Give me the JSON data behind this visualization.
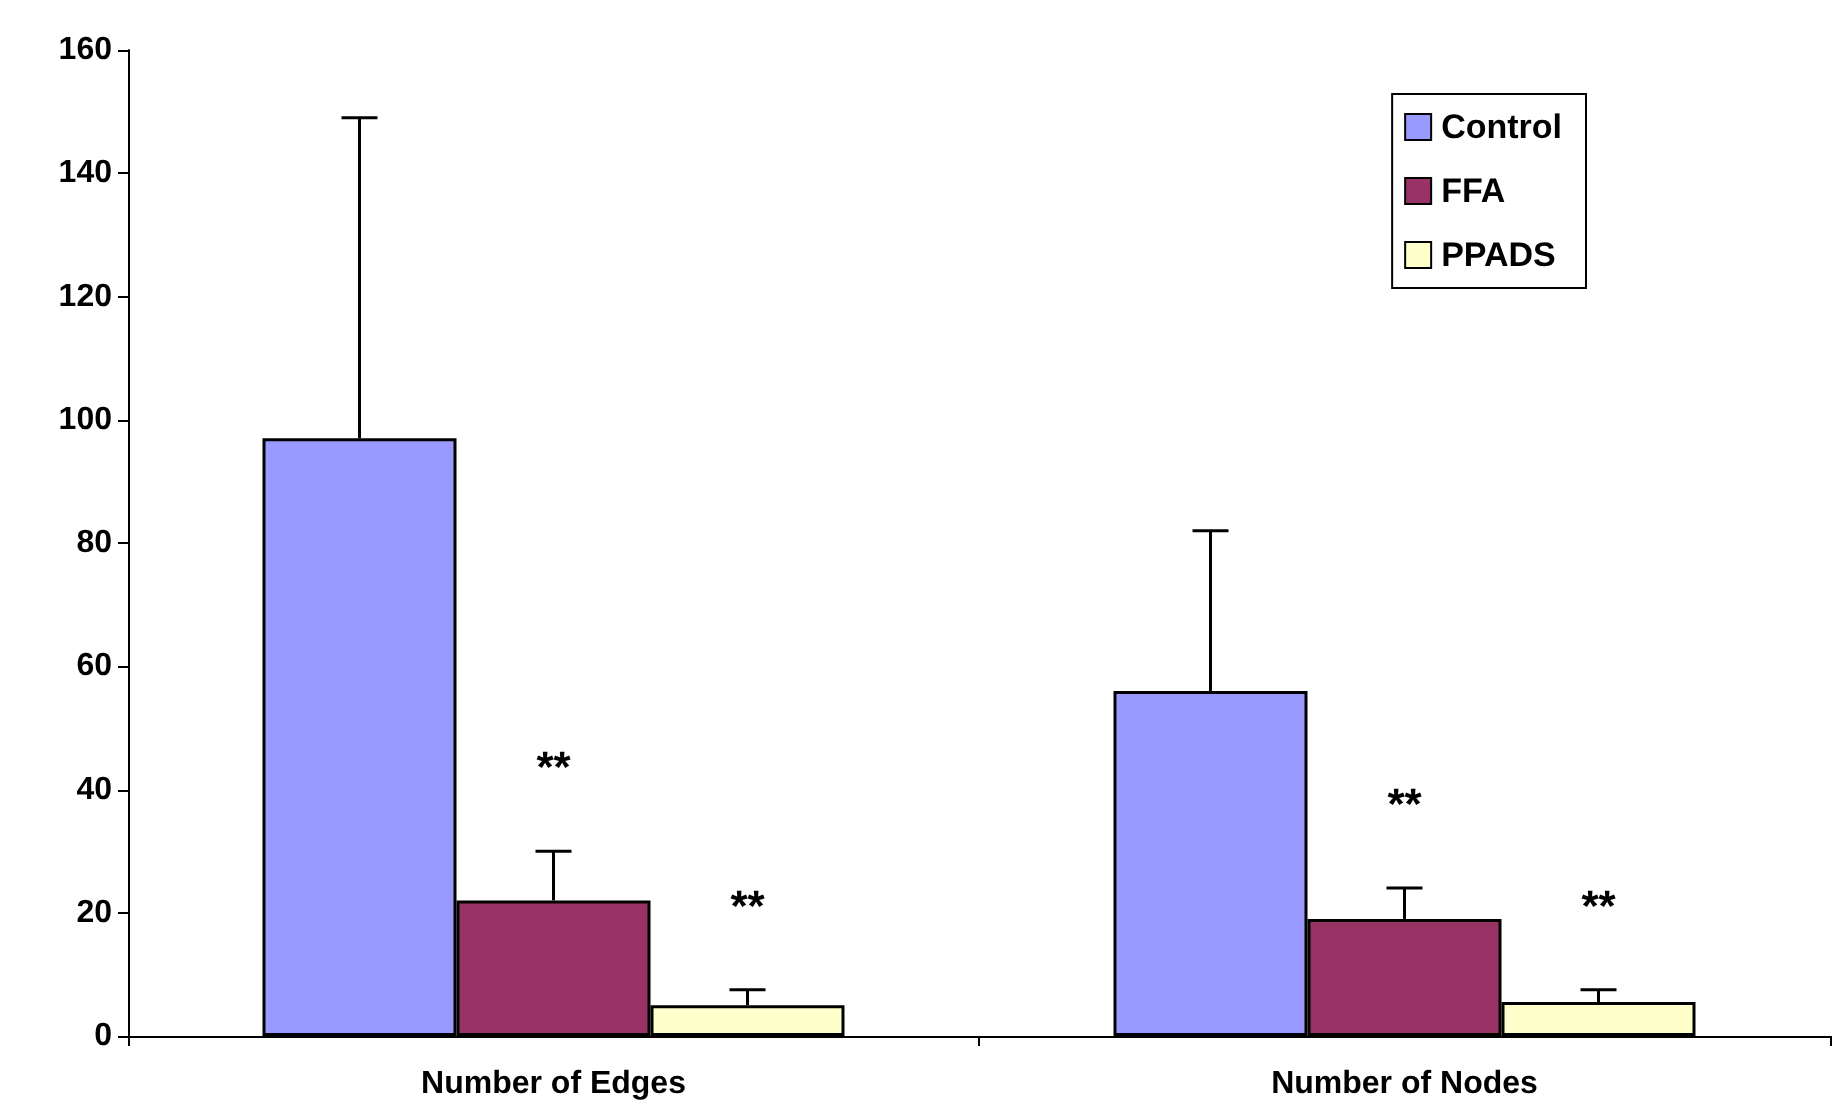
{
  "chart_data": {
    "type": "bar",
    "categories": [
      "Number of Edges",
      "Number of Nodes"
    ],
    "series": [
      {
        "name": "Control",
        "color": "#9999ff",
        "values": [
          97,
          56
        ],
        "errors": [
          [
            97,
            149
          ],
          [
            56,
            82
          ]
        ]
      },
      {
        "name": "FFA",
        "color": "#993366",
        "values": [
          22,
          19
        ],
        "errors": [
          [
            22,
            30
          ],
          [
            19,
            24
          ]
        ]
      },
      {
        "name": "PPADS",
        "color": "#ffffcc",
        "values": [
          5,
          5.5
        ],
        "errors": [
          [
            5,
            7.5
          ],
          [
            5.5,
            7.5
          ]
        ]
      }
    ],
    "ylim": [
      0,
      160
    ],
    "yticks": [
      0,
      20,
      40,
      60,
      80,
      100,
      120,
      140,
      160
    ],
    "grid": false,
    "legend": "top right",
    "annotations": [
      "**",
      "**",
      "**",
      "**"
    ]
  }
}
